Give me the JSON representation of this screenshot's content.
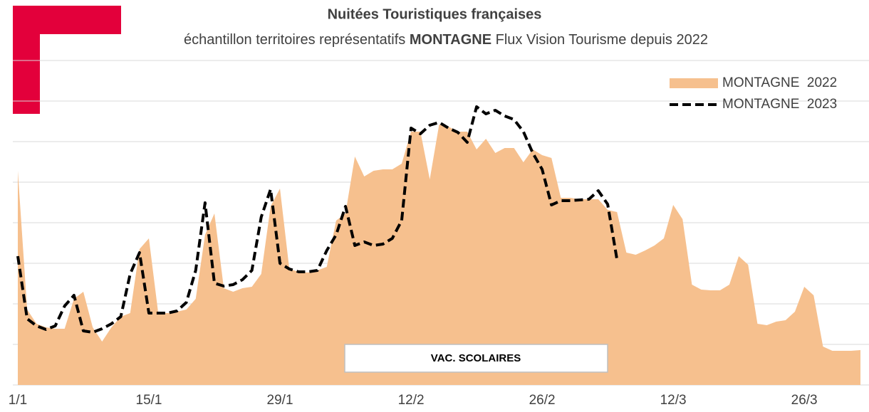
{
  "chart_data": {
    "type": "area-line",
    "title": "Nuitées Touristiques françaises",
    "subtitle": [
      "échantillon territoires représentatifs",
      "MONTAGNE",
      "Flux Vision Tourisme depuis 2022"
    ],
    "annotation": "VAC. SCOLAIRES",
    "categories": [
      "1/1",
      null,
      null,
      null,
      null,
      null,
      null,
      null,
      null,
      null,
      null,
      null,
      null,
      null,
      "15/1",
      null,
      null,
      null,
      null,
      null,
      null,
      null,
      null,
      null,
      null,
      null,
      null,
      null,
      "29/1",
      null,
      null,
      null,
      null,
      null,
      null,
      null,
      null,
      null,
      null,
      null,
      null,
      null,
      "12/2",
      null,
      null,
      null,
      null,
      null,
      null,
      null,
      null,
      null,
      null,
      null,
      null,
      null,
      "26/2",
      null,
      null,
      null,
      null,
      null,
      null,
      null,
      null,
      null,
      null,
      null,
      null,
      null,
      "12/3",
      null,
      null,
      null,
      null,
      null,
      null,
      null,
      null,
      null,
      null,
      null,
      null,
      null,
      "26/3",
      null,
      null,
      null,
      null,
      null,
      null
    ],
    "series": [
      {
        "name": "MONTAGNE  2022",
        "color": "#f6c08e",
        "style": "area",
        "values": [
          301,
          106,
          86,
          81,
          79,
          79,
          121,
          131,
          81,
          61,
          81,
          96,
          101,
          191,
          206,
          101,
          101,
          103,
          106,
          121,
          211,
          241,
          136,
          131,
          136,
          138,
          156,
          251,
          276,
          163,
          159,
          158,
          161,
          166,
          231,
          241,
          321,
          293,
          301,
          303,
          303,
          311,
          356,
          356,
          289,
          366,
          363,
          356,
          356,
          331,
          346,
          326,
          333,
          333,
          313,
          331,
          323,
          319,
          263,
          263,
          261,
          261,
          261,
          246,
          243,
          186,
          183,
          189,
          196,
          206,
          253,
          233,
          141,
          134,
          133,
          133,
          141,
          181,
          169,
          86,
          84,
          89,
          91,
          103,
          138,
          126,
          54,
          48,
          48,
          48,
          49
        ]
      },
      {
        "name": "MONTAGNE  2023",
        "color": "#000000",
        "style": "dashed",
        "values": [
          181,
          93,
          83,
          78,
          83,
          111,
          126,
          76,
          74,
          79,
          86,
          96,
          156,
          186,
          101,
          101,
          101,
          104,
          116,
          161,
          256,
          143,
          139,
          141,
          148,
          161,
          236,
          275,
          171,
          163,
          159,
          159,
          161,
          189,
          211,
          251,
          196,
          201,
          196,
          198,
          206,
          231,
          361,
          353,
          365,
          369,
          361,
          355,
          341,
          391,
          381,
          386,
          378,
          373,
          356,
          326,
          303,
          253,
          259,
          259,
          260,
          261,
          273,
          254,
          176,
          null,
          null,
          null,
          null,
          null,
          null,
          null,
          null,
          null,
          null,
          null,
          null,
          null,
          null,
          null,
          null,
          null,
          null,
          null,
          null,
          null,
          null,
          null,
          null,
          null,
          null
        ]
      }
    ],
    "ylim": [
      0,
      456
    ],
    "yticks": [
      0,
      57,
      114,
      171,
      228,
      285,
      342,
      399,
      456
    ],
    "grid": true,
    "legend": "top-right"
  }
}
